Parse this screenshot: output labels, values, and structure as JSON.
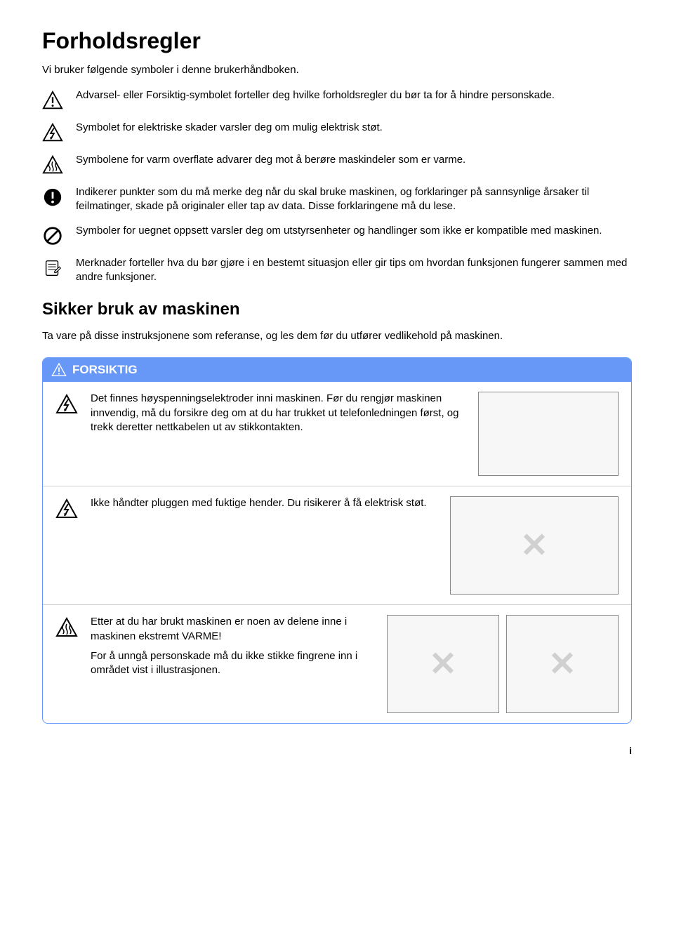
{
  "page": {
    "title": "Forholdsregler",
    "intro": "Vi bruker følgende symboler i denne brukerhåndboken.",
    "page_number": "i"
  },
  "symbols": [
    {
      "icon": "warning-triangle",
      "text": "Advarsel- eller Forsiktig-symbolet forteller deg hvilke forholdsregler du bør ta for å hindre personskade."
    },
    {
      "icon": "electric-triangle",
      "text": "Symbolet for elektriske skader varsler deg om mulig elektrisk støt."
    },
    {
      "icon": "hot-surface-triangle",
      "text": "Symbolene for varm overflate advarer deg mot å berøre maskindeler som er varme."
    },
    {
      "icon": "exclamation-circle",
      "text": "Indikerer punkter som du må merke deg når du skal bruke maskinen, og forklaringer på sannsynlige årsaker til feilmatinger, skade på originaler eller tap av data. Disse forklaringene må du lese."
    },
    {
      "icon": "prohibition-circle",
      "text": "Symboler for uegnet oppsett varsler deg om utstyrsenheter og handlinger som ikke er kompatible med maskinen."
    },
    {
      "icon": "note-icon",
      "text": "Merknader forteller hva du bør gjøre i en bestemt situasjon eller gir tips om hvordan funksjonen fungerer sammen med andre funksjoner."
    }
  ],
  "safe_use": {
    "heading": "Sikker bruk av maskinen",
    "body": "Ta vare på disse instruksjonene som referanse, og les dem før du utfører vedlikehold på maskinen."
  },
  "warning": {
    "header_label": "FORSIKTIG",
    "items": [
      {
        "icon": "electric-triangle",
        "paragraphs": [
          "Det finnes høyspenningselektroder inni maskinen. Før du rengjør maskinen innvendig, må du forsikre deg om at du har trukket ut telefonledningen først, og trekk deretter nettkabelen ut av stikkontakten."
        ],
        "illus_count": 1,
        "illus_w": 200,
        "illus_h": 120,
        "show_x": false
      },
      {
        "icon": "electric-triangle",
        "paragraphs": [
          "Ikke håndter pluggen med fuktige hender. Du risikerer å få elektrisk støt."
        ],
        "illus_count": 1,
        "illus_w": 240,
        "illus_h": 140,
        "show_x": true
      },
      {
        "icon": "hot-surface-triangle",
        "paragraphs": [
          "Etter at du har brukt maskinen er noen av delene inne i maskinen ekstremt VARME!",
          "For å unngå personskade må du ikke stikke fingrene inn i området vist i illustrasjonen."
        ],
        "illus_count": 2,
        "illus_w": 160,
        "illus_h": 140,
        "show_x": true
      }
    ]
  },
  "colors": {
    "warning_header_bg": "#6798f8",
    "warning_border": "#6699ff",
    "text": "#000000"
  }
}
